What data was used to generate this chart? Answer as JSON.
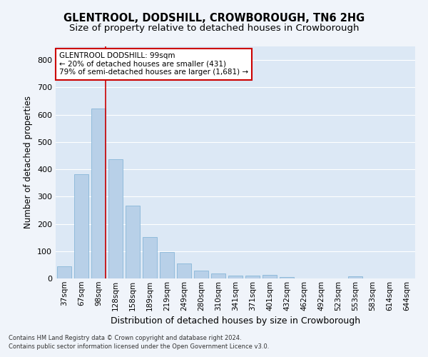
{
  "title": "GLENTROOL, DODSHILL, CROWBOROUGH, TN6 2HG",
  "subtitle": "Size of property relative to detached houses in Crowborough",
  "xlabel": "Distribution of detached houses by size in Crowborough",
  "ylabel": "Number of detached properties",
  "categories": [
    "37sqm",
    "67sqm",
    "98sqm",
    "128sqm",
    "158sqm",
    "189sqm",
    "219sqm",
    "249sqm",
    "280sqm",
    "310sqm",
    "341sqm",
    "371sqm",
    "401sqm",
    "432sqm",
    "462sqm",
    "492sqm",
    "523sqm",
    "553sqm",
    "583sqm",
    "614sqm",
    "644sqm"
  ],
  "values": [
    45,
    383,
    623,
    437,
    268,
    152,
    97,
    54,
    30,
    18,
    10,
    10,
    13,
    5,
    0,
    0,
    0,
    8,
    0,
    0,
    0
  ],
  "bar_color": "#b8d0e8",
  "bar_edgecolor": "#7aafd4",
  "highlight_index": 2,
  "highlight_line_color": "#cc0000",
  "annotation_text": "GLENTROOL DODSHILL: 99sqm\n← 20% of detached houses are smaller (431)\n79% of semi-detached houses are larger (1,681) →",
  "annotation_box_edgecolor": "#cc0000",
  "ylim": [
    0,
    850
  ],
  "yticks": [
    0,
    100,
    200,
    300,
    400,
    500,
    600,
    700,
    800
  ],
  "footer_line1": "Contains HM Land Registry data © Crown copyright and database right 2024.",
  "footer_line2": "Contains public sector information licensed under the Open Government Licence v3.0.",
  "bg_color": "#f0f4fa",
  "plot_bg_color": "#dce8f5",
  "grid_color": "#ffffff",
  "title_fontsize": 10.5,
  "subtitle_fontsize": 9.5,
  "tick_fontsize": 7.5,
  "ylabel_fontsize": 8.5,
  "xlabel_fontsize": 9
}
